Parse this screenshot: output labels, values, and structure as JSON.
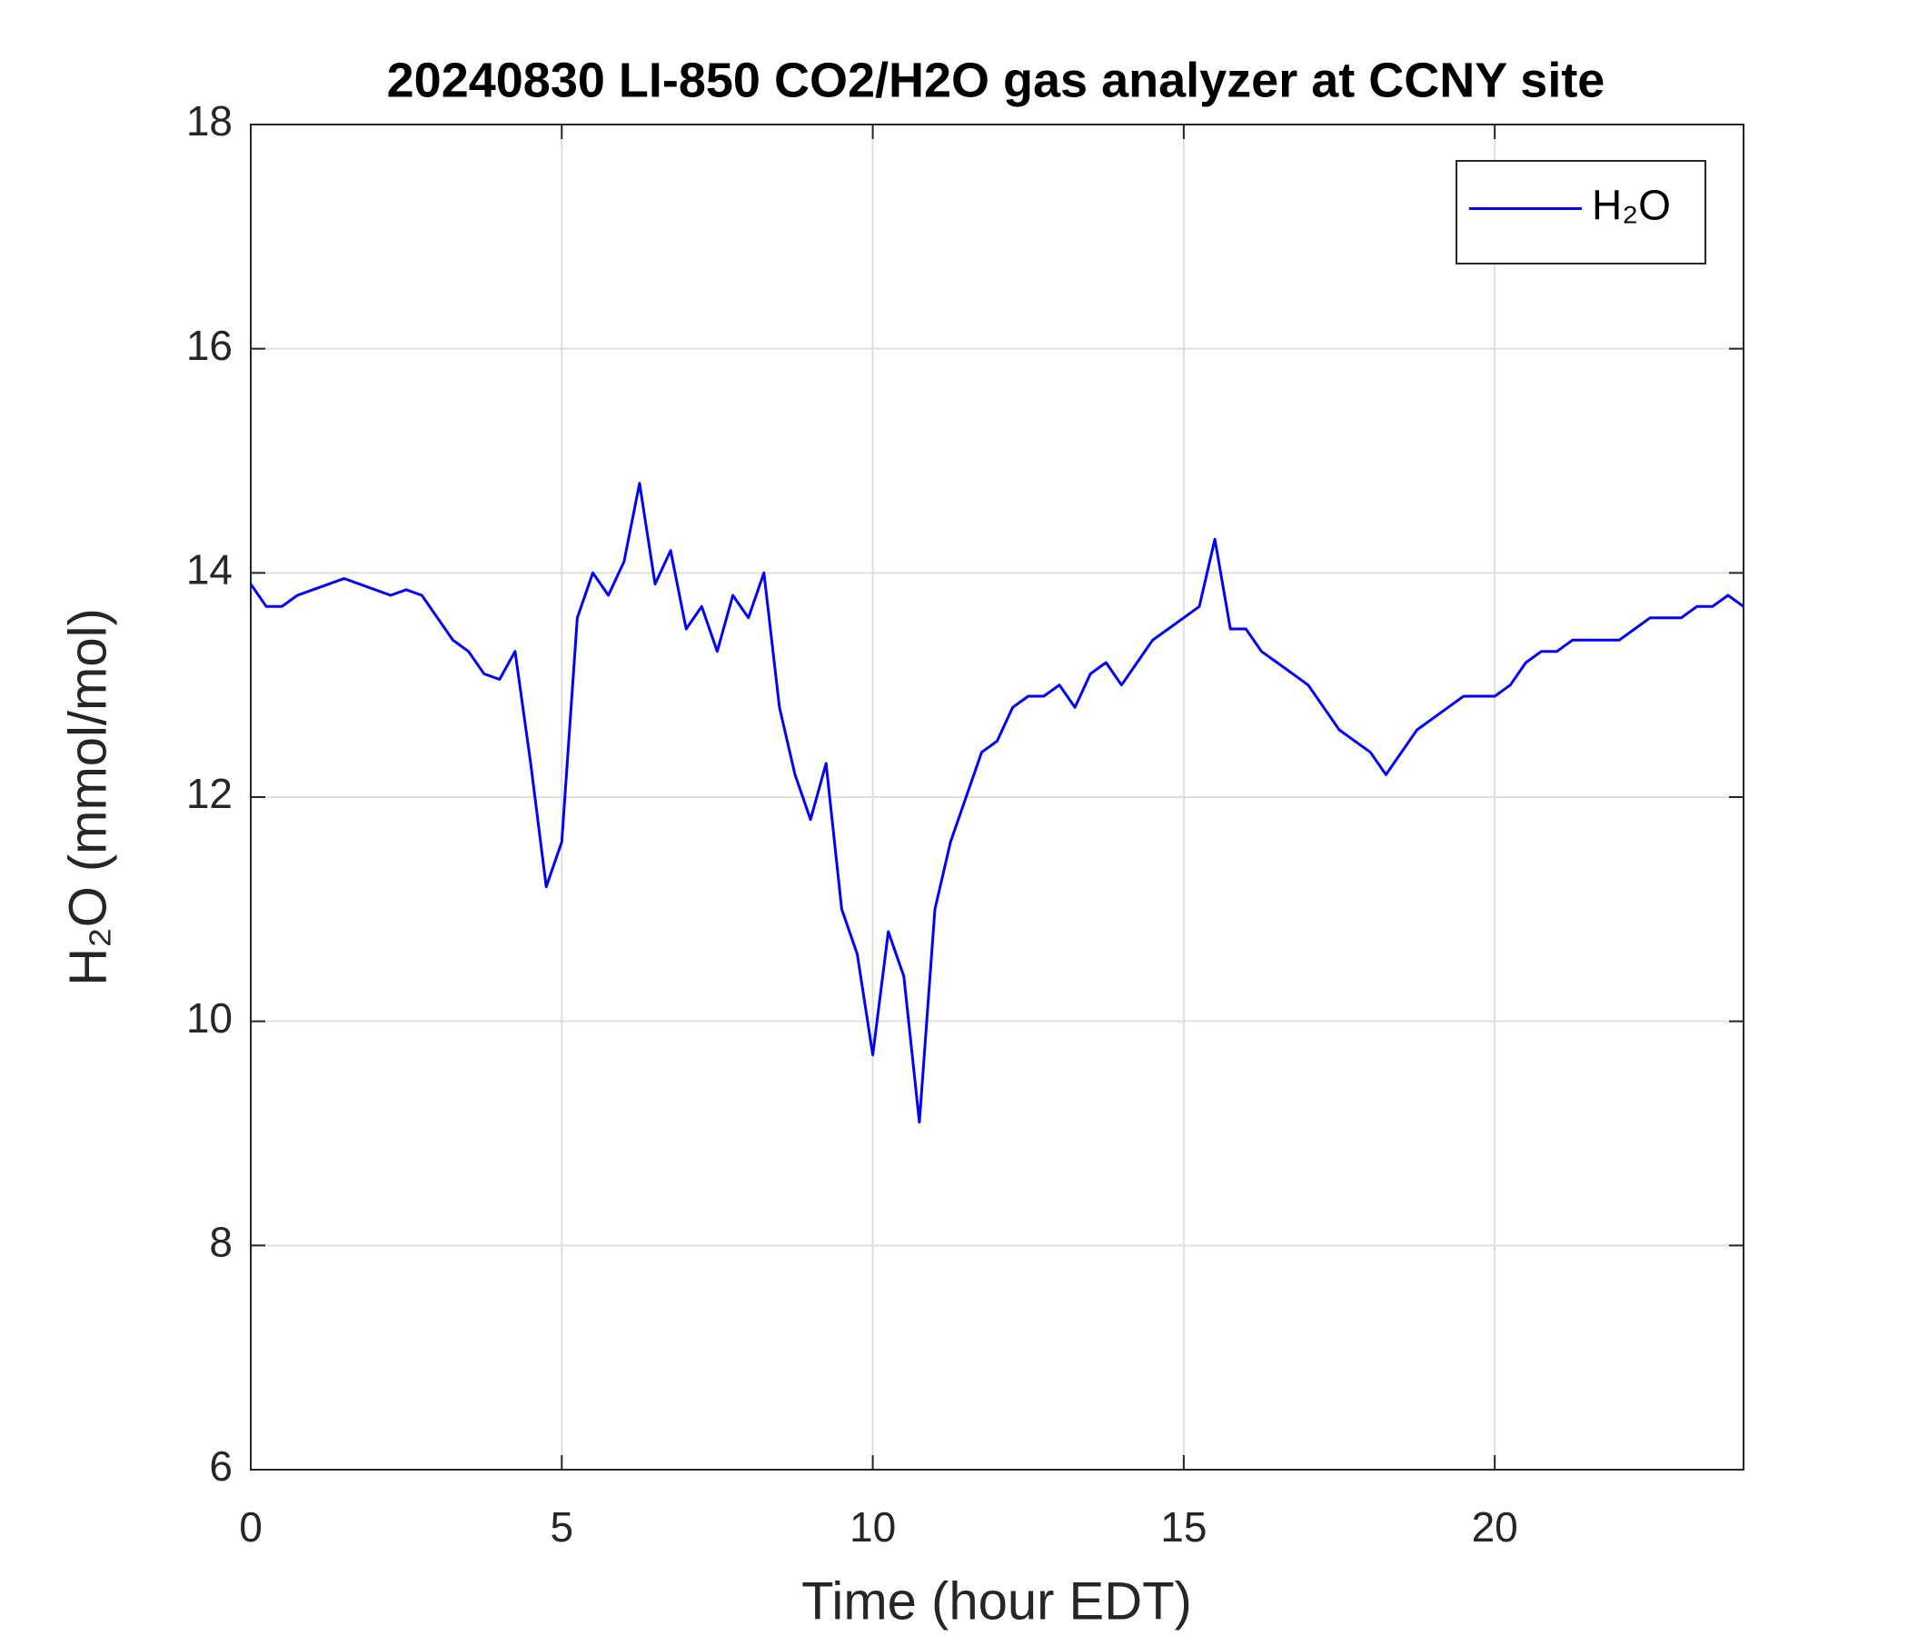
{
  "chart_data": {
    "type": "line",
    "title": "20240830 LI-850 CO2/H2O gas analyzer at CCNY site",
    "xlabel": "Time (hour EDT)",
    "ylabel": "H₂O (mmol/mol)",
    "x": [
      0,
      0.25,
      0.5,
      0.75,
      1,
      1.25,
      1.5,
      1.75,
      2,
      2.25,
      2.5,
      2.75,
      3,
      3.25,
      3.5,
      3.75,
      4,
      4.25,
      4.5,
      4.75,
      5,
      5.25,
      5.5,
      5.75,
      6,
      6.25,
      6.5,
      6.75,
      7,
      7.25,
      7.5,
      7.75,
      8,
      8.25,
      8.5,
      8.75,
      9,
      9.25,
      9.5,
      9.75,
      10,
      10.25,
      10.5,
      10.75,
      11,
      11.25,
      11.5,
      11.75,
      12,
      12.25,
      12.5,
      12.75,
      13,
      13.25,
      13.5,
      13.75,
      14,
      14.25,
      14.5,
      14.75,
      15,
      15.25,
      15.5,
      15.75,
      16,
      16.25,
      16.5,
      16.75,
      17,
      17.25,
      17.5,
      17.75,
      18,
      18.25,
      18.5,
      18.75,
      19,
      19.25,
      19.5,
      19.75,
      20,
      20.25,
      20.5,
      20.75,
      21,
      21.25,
      21.5,
      21.75,
      22,
      22.25,
      22.5,
      22.75,
      23,
      23.25,
      23.5,
      23.75,
      24
    ],
    "series": [
      {
        "name": "H₂O",
        "color": "#0000ff",
        "values": [
          13.9,
          13.7,
          13.7,
          13.8,
          13.85,
          13.9,
          13.95,
          13.9,
          13.85,
          13.8,
          13.85,
          13.8,
          13.6,
          13.4,
          13.3,
          13.1,
          13.05,
          13.3,
          12.3,
          11.2,
          11.6,
          13.6,
          14.0,
          13.8,
          14.1,
          14.8,
          13.9,
          14.2,
          13.5,
          13.7,
          13.3,
          13.8,
          13.6,
          14.0,
          12.8,
          12.2,
          11.8,
          12.3,
          11.0,
          10.6,
          9.7,
          10.8,
          10.4,
          9.1,
          11.0,
          11.6,
          12.0,
          12.4,
          12.5,
          12.8,
          12.9,
          12.9,
          13.0,
          12.8,
          13.1,
          13.2,
          13.0,
          13.2,
          13.4,
          13.5,
          13.6,
          13.7,
          14.3,
          13.5,
          13.5,
          13.3,
          13.2,
          13.1,
          13.0,
          12.8,
          12.6,
          12.5,
          12.4,
          12.2,
          12.4,
          12.6,
          12.7,
          12.8,
          12.9,
          12.9,
          12.9,
          13.0,
          13.2,
          13.3,
          13.3,
          13.4,
          13.4,
          13.4,
          13.4,
          13.5,
          13.6,
          13.6,
          13.6,
          13.7,
          13.7,
          13.8,
          13.7
        ]
      }
    ],
    "xlim": [
      0,
      24
    ],
    "xticks": [
      0,
      5,
      10,
      15,
      20
    ],
    "ylim": [
      6,
      18
    ],
    "yticks": [
      6,
      8,
      10,
      12,
      14,
      16,
      18
    ],
    "grid": true,
    "legend": "upper right"
  }
}
